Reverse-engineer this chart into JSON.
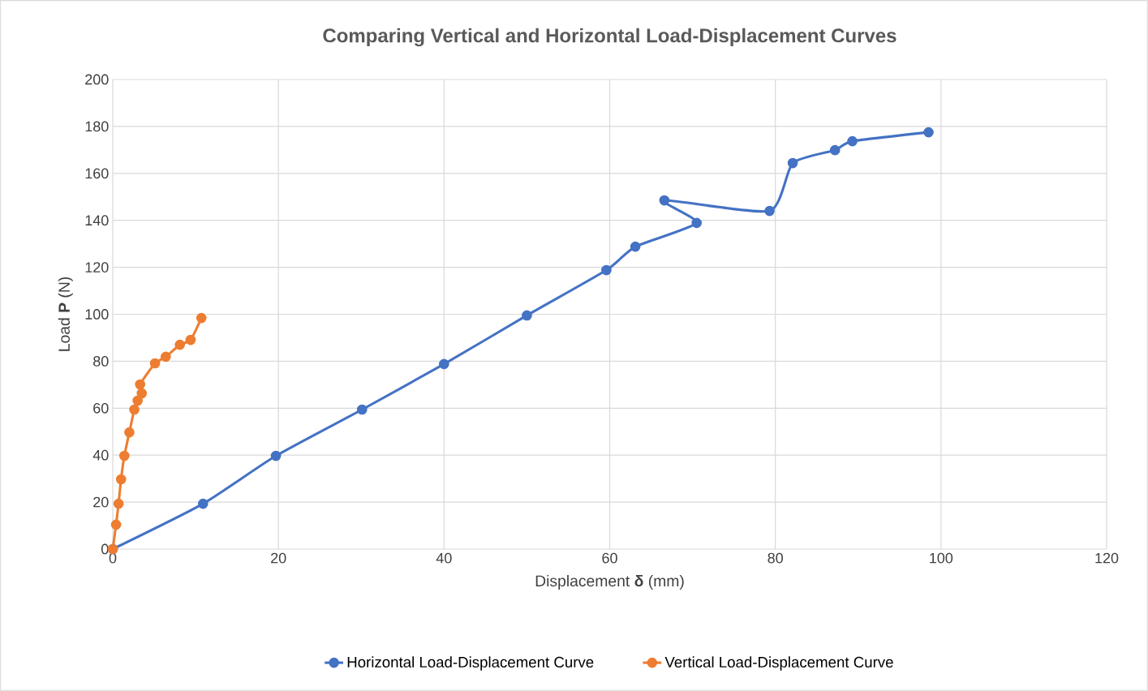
{
  "chart_data": {
    "type": "line",
    "title": "Comparing Vertical and Horizontal Load-Displacement Curves",
    "xlabel": "Displacement **δ** (mm)",
    "ylabel": "Load **P** (N)",
    "xlim": [
      0,
      120
    ],
    "ylim": [
      0,
      200
    ],
    "xticks": [
      0,
      20,
      40,
      60,
      80,
      100,
      120
    ],
    "yticks": [
      0,
      20,
      40,
      60,
      80,
      100,
      120,
      140,
      160,
      180,
      200
    ],
    "grid": true,
    "legend": "bottom",
    "marker": "circle",
    "line_style": "solid",
    "series": [
      {
        "name": "Horizontal Load-Displacement Curve",
        "color": "#4472c4",
        "x": [
          0,
          10.9,
          19.7,
          30.1,
          40.0,
          50.0,
          59.6,
          63.1,
          70.5,
          66.6,
          79.3,
          82.1,
          87.2,
          89.3,
          98.5
        ],
        "values": [
          0,
          19.3,
          39.7,
          59.4,
          78.8,
          99.5,
          118.8,
          128.8,
          138.9,
          148.5,
          144.0,
          164.4,
          169.9,
          173.7,
          177.5
        ]
      },
      {
        "name": "Vertical Load-Displacement Curve",
        "color": "#ed7d31",
        "x": [
          0,
          0.4,
          0.7,
          1.0,
          1.4,
          2.0,
          2.6,
          3.0,
          3.5,
          3.3,
          5.1,
          6.4,
          8.1,
          9.4,
          10.7
        ],
        "values": [
          0,
          10.4,
          19.3,
          29.7,
          39.7,
          49.7,
          59.4,
          63.2,
          66.3,
          70.1,
          79.1,
          81.9,
          87.0,
          89.1,
          98.4
        ]
      }
    ]
  }
}
